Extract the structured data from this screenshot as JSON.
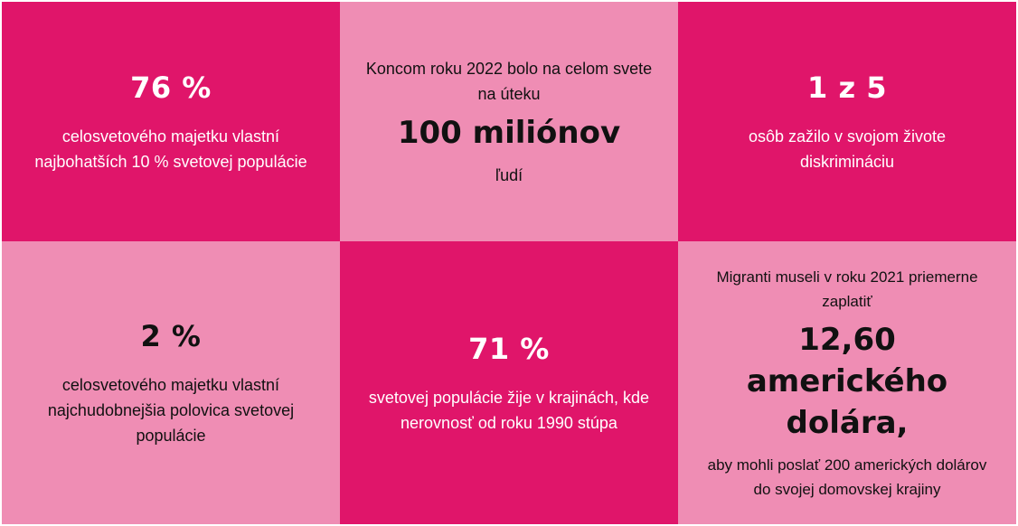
{
  "tiles": [
    {
      "headline": "76 %",
      "text": "celosvetového majetku vlastní najbohatších 10 % svetovej populácie"
    },
    {
      "intro": "Koncom roku 2022 bolo na celom svete na úteku",
      "headline": "100 miliónov",
      "text": "ľudí"
    },
    {
      "headline": "1 z 5",
      "text": "osôb zažilo v svojom živote diskrimináciu"
    },
    {
      "headline": "2 %",
      "text": "celosvetového majetku vlastní najchudobnejšia polovica svetovej populácie"
    },
    {
      "headline": "71 %",
      "text": "svetovej populácie žije v krajinách, kde nerovnosť od roku 1990 stúpa"
    },
    {
      "intro": "Migranti museli v roku 2021 priemerne zaplatiť",
      "headline": "12,60 amerického dolára,",
      "text": "aby mohli poslať 200 amerických dolárov do svojej domovskej krajiny"
    }
  ],
  "colors": {
    "dark_tile": "#e0156a",
    "light_tile": "#ef8db4",
    "dark_text": "#ffffff",
    "light_text": "#111111"
  }
}
